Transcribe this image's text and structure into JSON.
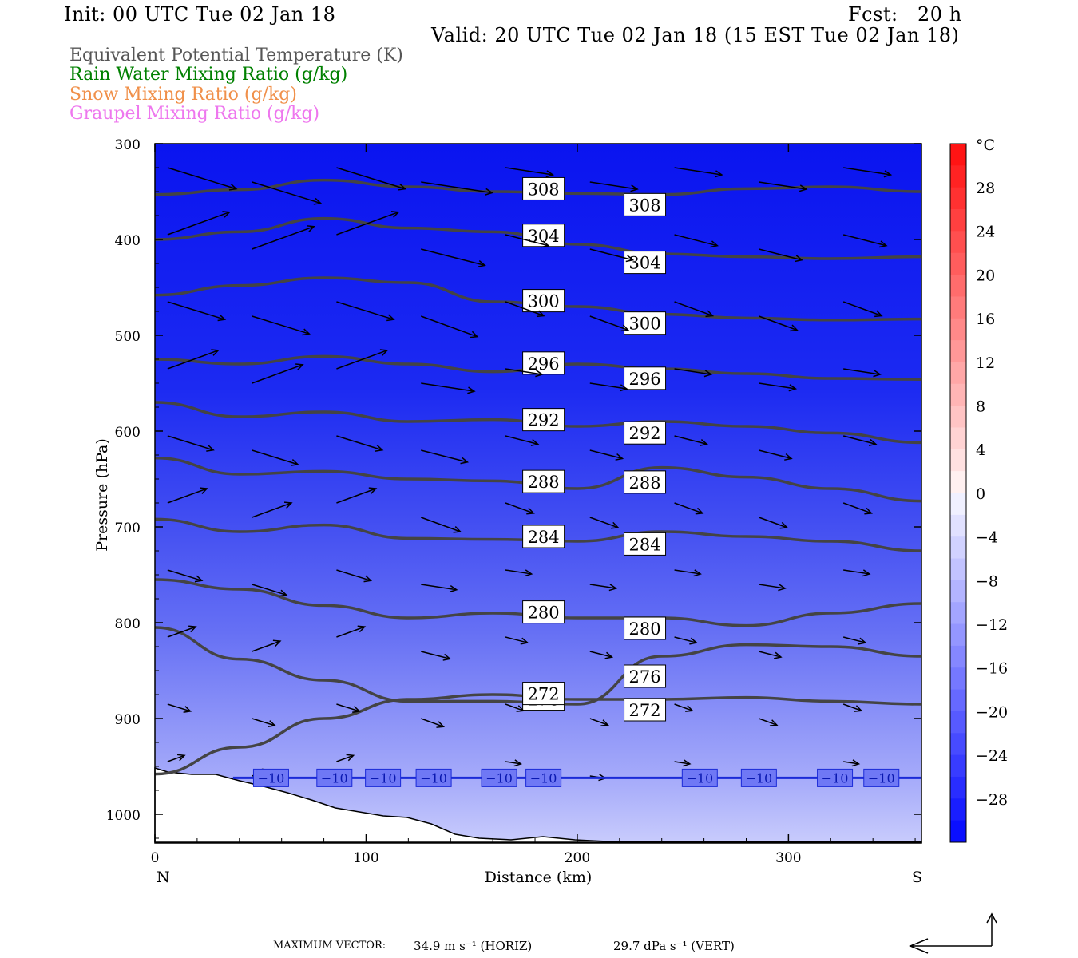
{
  "header": {
    "init": "Init: 00 UTC Tue 02 Jan 18",
    "fcst": "Fcst:   20 h",
    "valid": "Valid: 20 UTC Tue 02 Jan 18 (15 EST Tue 02 Jan 18)"
  },
  "legend": [
    {
      "label": "Equivalent Potential Temperature (K)",
      "color": "#555555"
    },
    {
      "label": "Rain Water Mixing Ratio (g/kg)",
      "color": "#008000"
    },
    {
      "label": "Snow Mixing Ratio (g/kg)",
      "color": "#f0904a"
    },
    {
      "label": "Graupel Mixing Ratio (g/kg)",
      "color": "#ee77ee"
    }
  ],
  "chart_data": {
    "type": "cross-section",
    "xlabel": "Distance (km)",
    "ylabel": "Pressure (hPa)",
    "xlim": [
      0,
      363
    ],
    "ylim": [
      1030,
      300
    ],
    "x_ticks": [
      "0",
      "100",
      "200",
      "300"
    ],
    "y_ticks": [
      "300",
      "400",
      "500",
      "600",
      "700",
      "800",
      "900",
      "1000"
    ],
    "end_labels": {
      "left": "N",
      "right": "S"
    },
    "colorbar": {
      "unit": "°C",
      "labels": [
        "28",
        "24",
        "20",
        "16",
        "12",
        "8",
        "4",
        "0",
        "−4",
        "−8",
        "−12",
        "−16",
        "−20",
        "−24",
        "−28"
      ]
    },
    "theta_e_contours": [
      {
        "value": "308",
        "x": [
          0,
          40,
          80,
          120,
          160,
          200,
          240,
          280,
          320,
          363
        ],
        "p": [
          353,
          348,
          338,
          345,
          350,
          352,
          353,
          347,
          345,
          350
        ]
      },
      {
        "value": "304",
        "x": [
          0,
          40,
          80,
          120,
          160,
          200,
          240,
          280,
          320,
          363
        ],
        "p": [
          400,
          392,
          378,
          388,
          392,
          405,
          415,
          418,
          420,
          418
        ]
      },
      {
        "value": "300",
        "x": [
          0,
          40,
          80,
          120,
          160,
          200,
          240,
          280,
          320,
          363
        ],
        "p": [
          458,
          448,
          440,
          445,
          465,
          470,
          478,
          482,
          484,
          483
        ]
      },
      {
        "value": "296",
        "x": [
          0,
          40,
          80,
          120,
          160,
          200,
          240,
          280,
          320,
          363
        ],
        "p": [
          525,
          530,
          522,
          530,
          538,
          530,
          535,
          540,
          545,
          546
        ]
      },
      {
        "value": "292",
        "x": [
          0,
          40,
          80,
          120,
          160,
          200,
          240,
          280,
          320,
          363
        ],
        "p": [
          570,
          585,
          580,
          590,
          588,
          595,
          590,
          595,
          602,
          612
        ]
      },
      {
        "value": "288",
        "x": [
          0,
          40,
          80,
          120,
          160,
          200,
          240,
          280,
          320,
          363
        ],
        "p": [
          628,
          645,
          642,
          650,
          652,
          660,
          638,
          648,
          660,
          673
        ]
      },
      {
        "value": "284",
        "x": [
          0,
          40,
          80,
          120,
          160,
          200,
          240,
          280,
          320,
          363
        ],
        "p": [
          692,
          705,
          698,
          712,
          713,
          715,
          705,
          710,
          715,
          725
        ]
      },
      {
        "value": "280",
        "x": [
          0,
          40,
          80,
          120,
          160,
          200,
          240,
          280,
          320,
          363
        ],
        "p": [
          755,
          765,
          782,
          795,
          790,
          795,
          795,
          803,
          790,
          780
        ]
      },
      {
        "value": "276",
        "x": [
          0,
          40,
          80,
          120,
          160,
          200,
          240,
          280,
          320,
          363
        ],
        "p": [
          805,
          838,
          860,
          882,
          882,
          885,
          835,
          823,
          825,
          835
        ]
      },
      {
        "value": "272",
        "x": [
          0,
          40,
          80,
          120,
          160,
          200,
          240,
          280,
          320,
          363
        ],
        "p": [
          958,
          930,
          900,
          880,
          875,
          880,
          880,
          878,
          882,
          885
        ]
      }
    ],
    "temperature_contour": {
      "value": "−10",
      "p": 962
    },
    "wind_vector_note": "north-to-south wind vectors, strongest aloft"
  },
  "footer": {
    "max_vector_label": "MAXIMUM VECTOR:",
    "horiz": "34.9 m s⁻¹ (HORIZ)",
    "vert": "29.7 dPa s⁻¹ (VERT)"
  }
}
